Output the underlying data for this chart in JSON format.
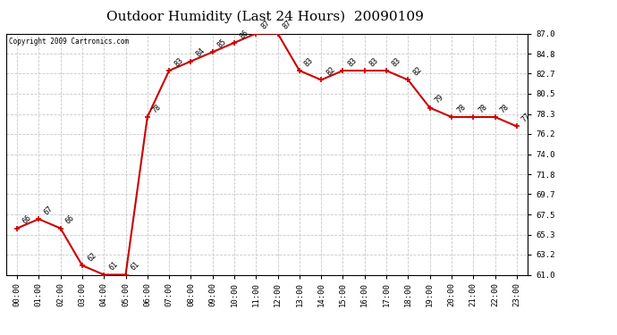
{
  "title": "Outdoor Humidity (Last 24 Hours)  20090109",
  "copyright": "Copyright 2009 Cartronics.com",
  "hours": [
    0,
    1,
    2,
    3,
    4,
    5,
    6,
    7,
    8,
    9,
    10,
    11,
    12,
    13,
    14,
    15,
    16,
    17,
    18,
    19,
    20,
    21,
    22,
    23
  ],
  "values": [
    66,
    67,
    66,
    62,
    61,
    61,
    78,
    83,
    84,
    85,
    86,
    87,
    87,
    83,
    82,
    83,
    83,
    83,
    82,
    79,
    78,
    78,
    78,
    77
  ],
  "xlabels": [
    "00:00",
    "01:00",
    "02:00",
    "03:00",
    "04:00",
    "05:00",
    "06:00",
    "07:00",
    "08:00",
    "09:00",
    "10:00",
    "11:00",
    "12:00",
    "13:00",
    "14:00",
    "15:00",
    "16:00",
    "17:00",
    "18:00",
    "19:00",
    "20:00",
    "21:00",
    "22:00",
    "23:00"
  ],
  "ylim": [
    61.0,
    87.0
  ],
  "yticks": [
    61.0,
    63.2,
    65.3,
    67.5,
    69.7,
    71.8,
    74.0,
    76.2,
    78.3,
    80.5,
    82.7,
    84.8,
    87.0
  ],
  "line_color": "#cc0000",
  "marker_color": "#cc0000",
  "bg_color": "#ffffff",
  "plot_bg_color": "#ffffff",
  "grid_color": "#c8c8c8",
  "title_fontsize": 11,
  "tick_fontsize": 6.5,
  "annotation_fontsize": 6.0
}
